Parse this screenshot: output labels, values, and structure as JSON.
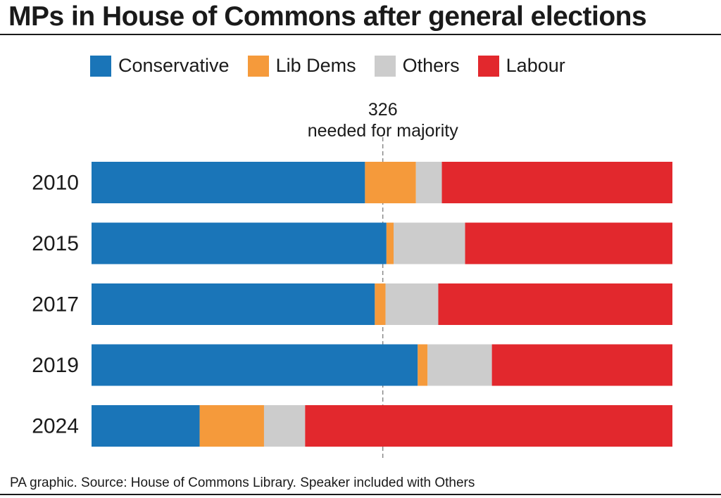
{
  "title": "MPs in House of Commons after general elections",
  "source": "PA graphic. Source: House of Commons Library. Speaker included with Others",
  "chart_data": {
    "type": "bar",
    "orientation": "horizontal",
    "stacked": true,
    "title": "MPs in House of Commons after general elections",
    "categories": [
      "2010",
      "2015",
      "2017",
      "2019",
      "2024"
    ],
    "xlim": [
      0,
      650
    ],
    "grid": false,
    "legend_placement": "top",
    "series": [
      {
        "name": "Conservative",
        "color": "#1a75b8",
        "values": [
          306,
          330,
          317,
          365,
          121
        ]
      },
      {
        "name": "Lib Dems",
        "color": "#f59a3b",
        "values": [
          57,
          8,
          12,
          11,
          72
        ]
      },
      {
        "name": "Others",
        "color": "#cccccc",
        "values": [
          29,
          80,
          59,
          72,
          46
        ]
      },
      {
        "name": "Labour",
        "color": "#e2282d",
        "values": [
          258,
          232,
          262,
          202,
          411
        ]
      }
    ],
    "annotation": {
      "value": 326,
      "label_value": "326",
      "label_text": "needed for majority"
    }
  }
}
